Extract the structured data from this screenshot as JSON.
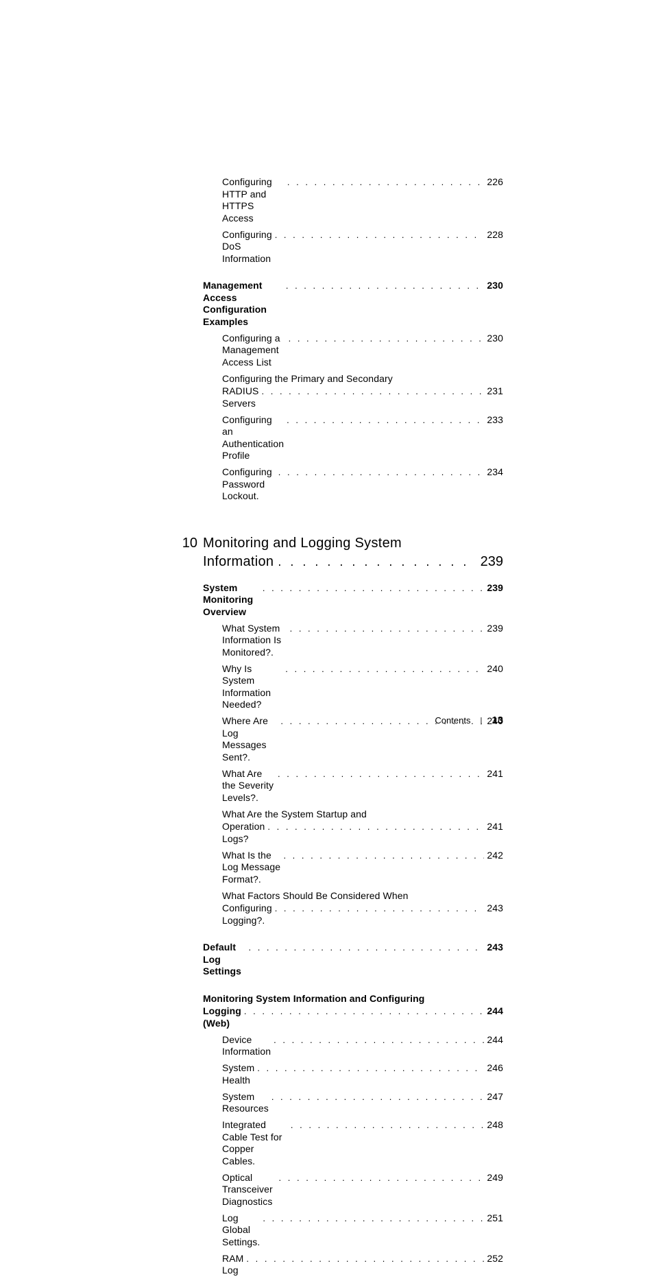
{
  "colors": {
    "text": "#000000",
    "background": "#ffffff"
  },
  "typography": {
    "body_font_size_pt": 10.5,
    "chapter_font_size_pt": 15,
    "font_family": "Helvetica"
  },
  "top_entries": [
    {
      "label": "Configuring HTTP and HTTPS Access",
      "page": "226",
      "indent": "sub"
    },
    {
      "label": "Configuring DoS Information",
      "page": "228",
      "indent": "sub"
    }
  ],
  "section_a": {
    "title": "Management Access Configuration Examples",
    "page": "230",
    "entries": [
      {
        "label": "Configuring a Management Access List",
        "page": "230"
      },
      {
        "label_wrap1": "Configuring the Primary and Secondary",
        "label_wrap2": "RADIUS Servers",
        "page": "231"
      },
      {
        "label": "Configuring an Authentication Profile",
        "page": "233"
      },
      {
        "label": "Configuring Password Lockout.",
        "page": "234"
      }
    ]
  },
  "chapter": {
    "number": "10",
    "title_line1": "Monitoring and Logging System",
    "title_line2": "Information",
    "page": "239"
  },
  "section_b": {
    "title": "System Monitoring Overview",
    "page": "239",
    "entries": [
      {
        "label": "What System Information Is Monitored?.",
        "page": "239"
      },
      {
        "label": "Why Is System Information Needed?",
        "page": "240"
      },
      {
        "label": "Where Are Log Messages Sent?.",
        "page": "240"
      },
      {
        "label": "What Are the Severity Levels?.",
        "page": "241"
      },
      {
        "label_wrap1": "What Are the System Startup and",
        "label_wrap2": "Operation Logs?",
        "page": "241"
      },
      {
        "label": "What Is the Log Message Format?.",
        "page": "242"
      },
      {
        "label_wrap1": "What Factors Should Be Considered When",
        "label_wrap2": "Configuring Logging?.",
        "page": "243"
      }
    ]
  },
  "section_c": {
    "title": "Default Log Settings",
    "page": "243"
  },
  "section_d": {
    "title_line1": "Monitoring System Information and Configuring",
    "title_line2": "Logging (Web)",
    "page": "244",
    "entries": [
      {
        "label": "Device Information",
        "page": "244"
      },
      {
        "label": "System Health",
        "page": "246"
      },
      {
        "label": "System Resources",
        "page": "247"
      },
      {
        "label": "Integrated Cable Test for Copper Cables.",
        "page": "248"
      },
      {
        "label": "Optical Transceiver Diagnostics",
        "page": "249"
      },
      {
        "label": "Log Global Settings.",
        "page": "251"
      },
      {
        "label": "RAM Log",
        "page": "252"
      }
    ]
  },
  "footer": {
    "label": "Contents",
    "separator": "|",
    "page_number": "13"
  }
}
